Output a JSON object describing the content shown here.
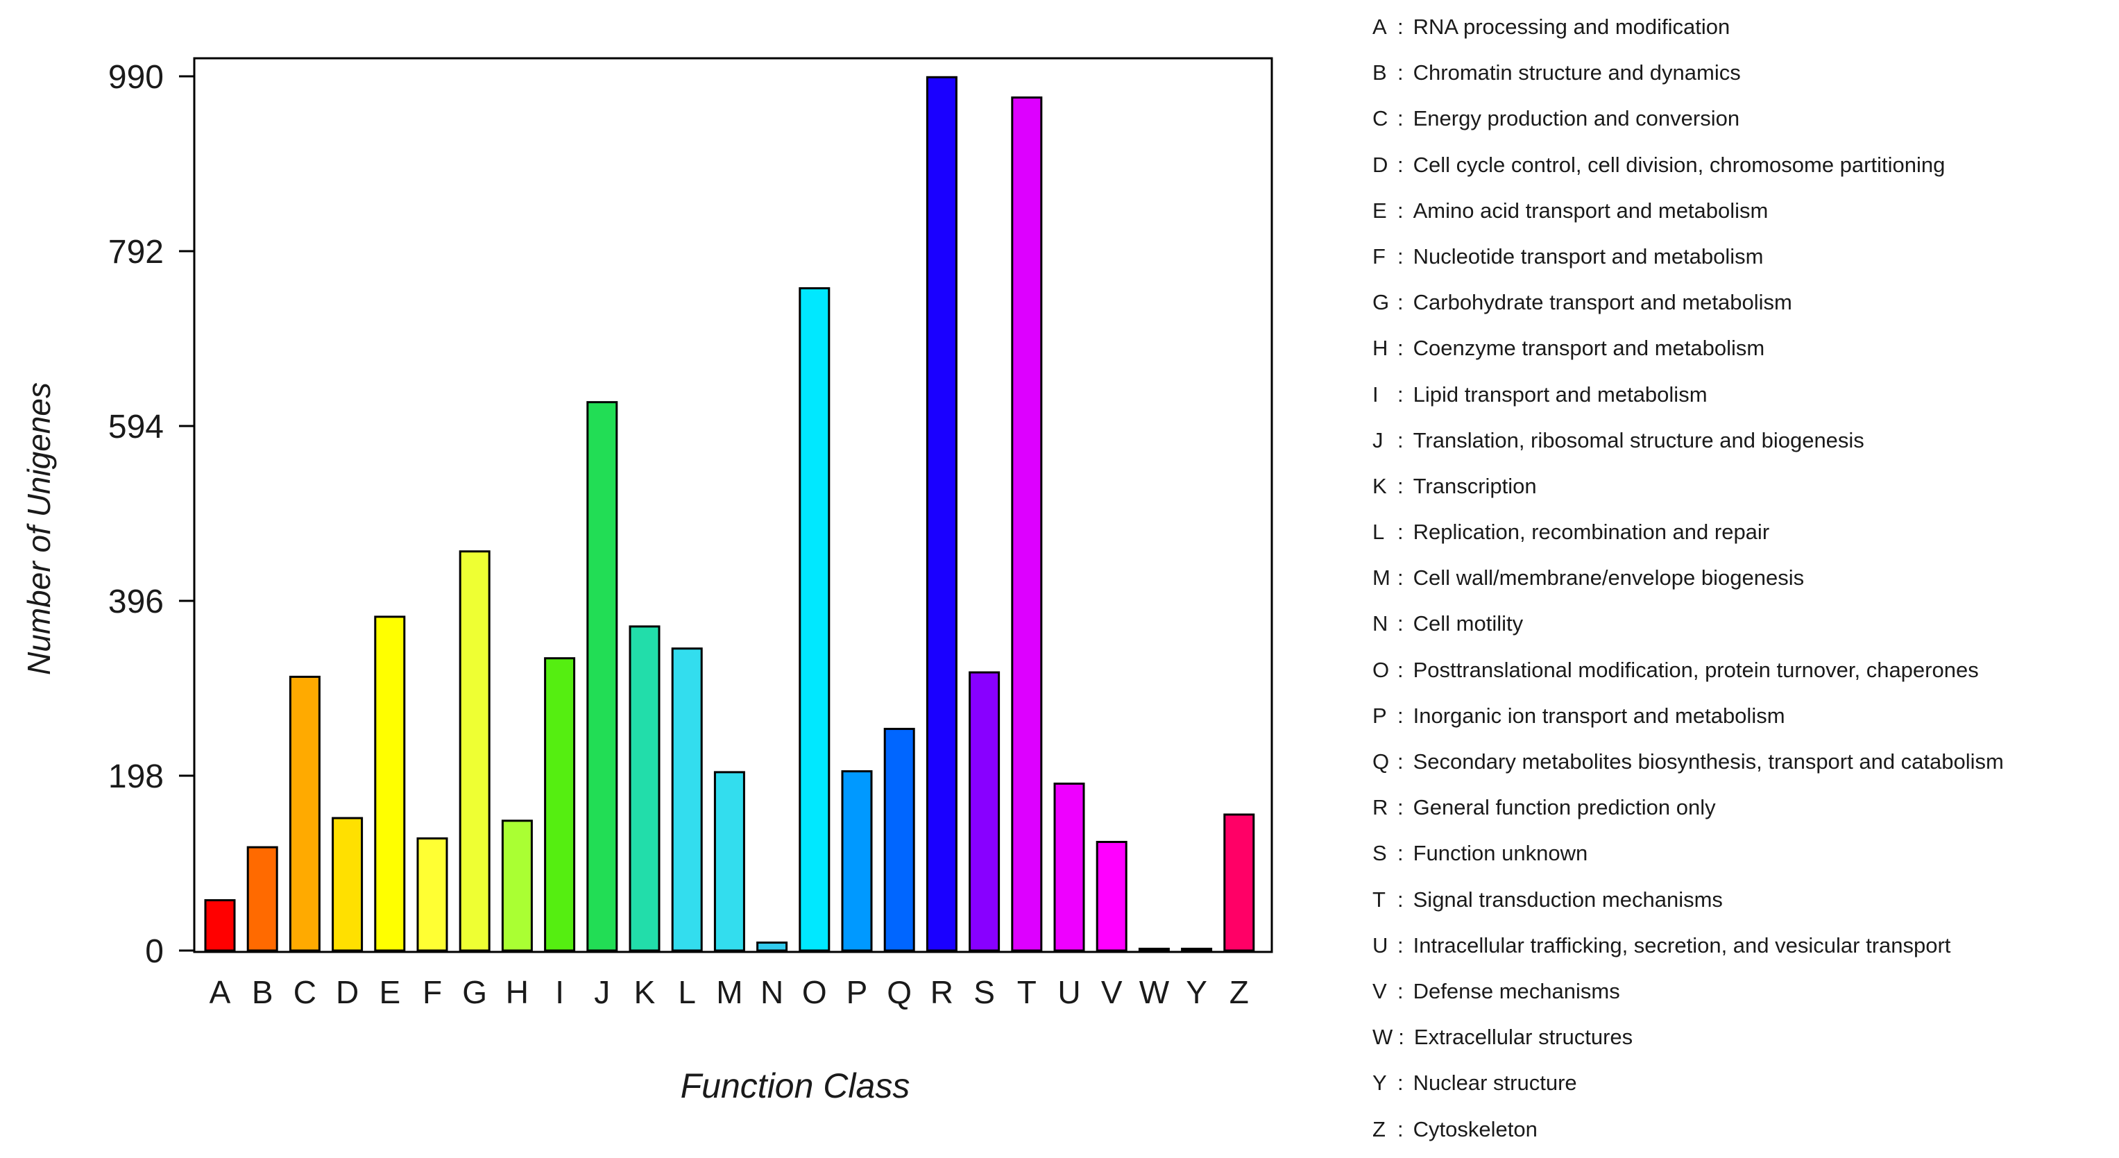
{
  "chart_data": {
    "type": "bar",
    "xlabel": "Function Class",
    "ylabel": "Number of Unigenes",
    "ylim": [
      0,
      990
    ],
    "yticks": [
      "0",
      "198",
      "396",
      "594",
      "792",
      "990"
    ],
    "grid": false,
    "categories": [
      "A",
      "B",
      "C",
      "D",
      "E",
      "F",
      "G",
      "H",
      "I",
      "J",
      "K",
      "L",
      "M",
      "N",
      "O",
      "P",
      "Q",
      "R",
      "S",
      "T",
      "U",
      "V",
      "W",
      "Y",
      "Z"
    ],
    "values": [
      57,
      117,
      310,
      150,
      378,
      127,
      452,
      147,
      331,
      621,
      367,
      342,
      202,
      9,
      750,
      203,
      251,
      989,
      315,
      966,
      189,
      123,
      2,
      2,
      154
    ],
    "colors": [
      "#ff0000",
      "#ff6a00",
      "#ffaa00",
      "#ffe000",
      "#ffff00",
      "#ffff33",
      "#eeff33",
      "#aaff33",
      "#55ee11",
      "#22dd55",
      "#22ddaa",
      "#33ddee",
      "#33ddee",
      "#33ccee",
      "#00e8ff",
      "#0099ff",
      "#0066ff",
      "#1a00ff",
      "#8800ff",
      "#dd00ff",
      "#ee00ff",
      "#ff00ff",
      "#ff1199",
      "#ff2288",
      "#ff0066"
    ],
    "legend_separator": ":",
    "legend": [
      {
        "key": "A",
        "label": "RNA processing and modification"
      },
      {
        "key": "B",
        "label": "Chromatin structure and dynamics"
      },
      {
        "key": "C",
        "label": "Energy production and conversion"
      },
      {
        "key": "D",
        "label": "Cell cycle control, cell division, chromosome partitioning"
      },
      {
        "key": "E",
        "label": "Amino acid transport and metabolism"
      },
      {
        "key": "F",
        "label": "Nucleotide transport and metabolism"
      },
      {
        "key": "G",
        "label": "Carbohydrate transport and metabolism"
      },
      {
        "key": "H",
        "label": "Coenzyme transport and metabolism"
      },
      {
        "key": "I",
        "label": "Lipid transport and metabolism"
      },
      {
        "key": "J",
        "label": "Translation, ribosomal structure and biogenesis"
      },
      {
        "key": "K",
        "label": "Transcription"
      },
      {
        "key": "L",
        "label": "Replication, recombination and repair"
      },
      {
        "key": "M",
        "label": "Cell wall/membrane/envelope biogenesis"
      },
      {
        "key": "N",
        "label": "Cell motility"
      },
      {
        "key": "O",
        "label": "Posttranslational modification, protein turnover, chaperones"
      },
      {
        "key": "P",
        "label": "Inorganic ion transport and metabolism"
      },
      {
        "key": "Q",
        "label": "Secondary metabolites biosynthesis, transport and catabolism"
      },
      {
        "key": "R",
        "label": "General function prediction only"
      },
      {
        "key": "S",
        "label": "Function unknown"
      },
      {
        "key": "T",
        "label": "Signal transduction mechanisms"
      },
      {
        "key": "U",
        "label": "Intracellular trafficking, secretion, and vesicular transport"
      },
      {
        "key": "V",
        "label": "Defense mechanisms"
      },
      {
        "key": "W",
        "label": "Extracellular structures"
      },
      {
        "key": "Y",
        "label": "Nuclear structure"
      },
      {
        "key": "Z",
        "label": "Cytoskeleton"
      }
    ]
  }
}
